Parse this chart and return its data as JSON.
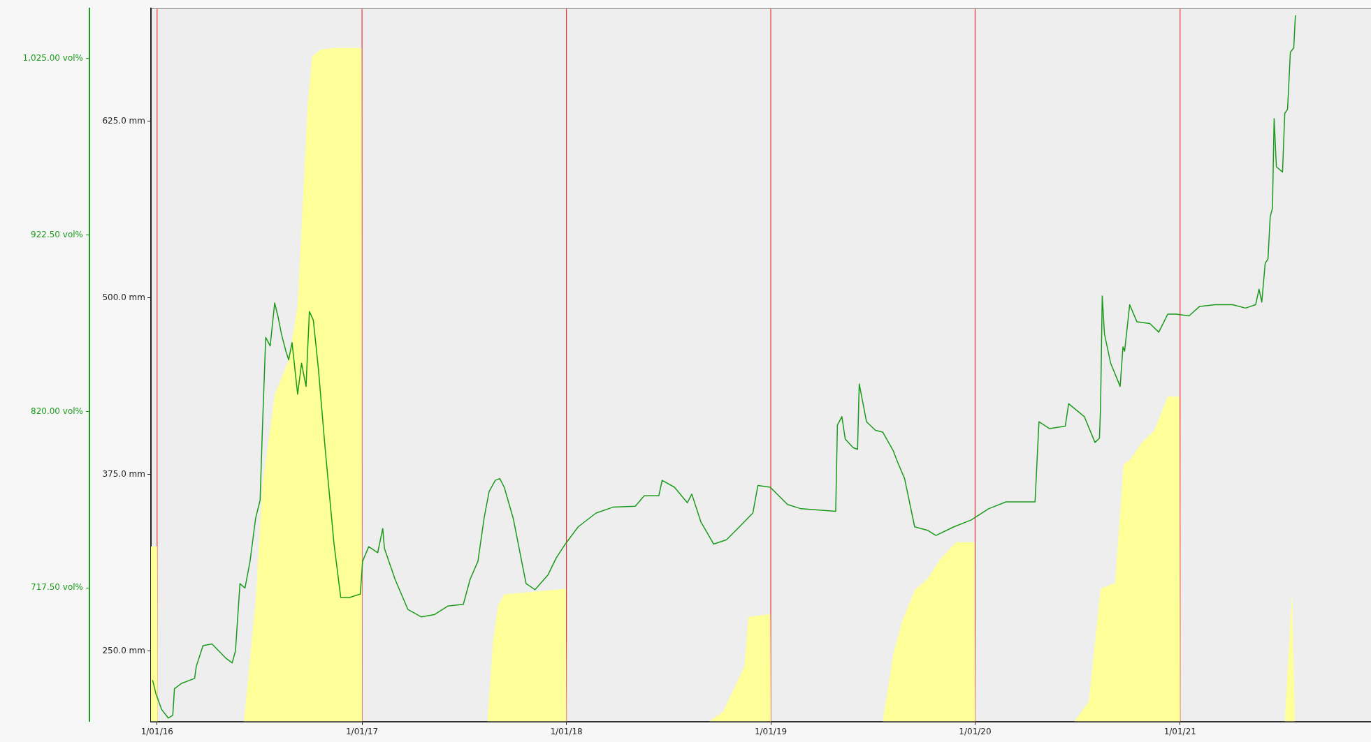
{
  "chart_data": {
    "type": "line",
    "xlim": [
      "2015-12-21",
      "2021-12-08"
    ],
    "xticks": [
      {
        "value": "2016-01-01",
        "label": "1/01/16"
      },
      {
        "value": "2017-01-01",
        "label": "1/01/17"
      },
      {
        "value": "2018-01-01",
        "label": "1/01/18"
      },
      {
        "value": "2019-01-01",
        "label": "1/01/19"
      },
      {
        "value": "2020-01-01",
        "label": "1/01/20"
      },
      {
        "value": "2021-01-01",
        "label": "1/01/21"
      }
    ],
    "ylim": [
      640,
      1054
    ],
    "yticks": [
      {
        "value": 717.5,
        "label": "717.50 vol%"
      },
      {
        "value": 820,
        "label": "820.00 vol%"
      },
      {
        "value": 922.5,
        "label": "922.50 vol%"
      },
      {
        "value": 1025,
        "label": "1,025.00 vol%"
      }
    ],
    "y2lim": [
      200,
      705
    ],
    "y2ticks": [
      {
        "value": 250,
        "label": "250.0 mm"
      },
      {
        "value": 375,
        "label": "375.0 mm"
      },
      {
        "value": 500,
        "label": "500.0 mm"
      },
      {
        "value": 625,
        "label": "625.0 mm"
      }
    ],
    "grid": false,
    "legend": false,
    "ref_lines": [
      {
        "axis": "x",
        "value": "2016-01-01",
        "color": "#e03c3c"
      },
      {
        "axis": "x",
        "value": "2017-01-01",
        "color": "#e03c3c"
      },
      {
        "axis": "x",
        "value": "2018-01-01",
        "color": "#e03c3c"
      },
      {
        "axis": "x",
        "value": "2019-01-01",
        "color": "#e03c3c"
      },
      {
        "axis": "x",
        "value": "2020-01-01",
        "color": "#e03c3c"
      },
      {
        "axis": "x",
        "value": "2021-01-01",
        "color": "#e03c3c"
      }
    ],
    "series": [
      {
        "type": "area",
        "axis": "y2",
        "color": "#ffff99",
        "x": [
          "2015-12-21",
          "2016-01-01",
          "2016-01-02",
          "2016-06-04",
          "2016-06-25",
          "2016-07-07",
          "2016-07-29",
          "2016-08-23",
          "2016-09-08",
          "2016-09-15",
          "2016-09-26",
          "2016-10-04",
          "2016-10-20",
          "2016-11-12",
          "2016-12-31",
          "2017-01-01",
          "2017-08-13",
          "2017-08-23",
          "2017-09-01",
          "2017-09-12",
          "2017-12-31",
          "2018-01-01",
          "2018-09-13",
          "2018-10-08",
          "2018-10-27",
          "2018-11-15",
          "2018-11-22",
          "2018-12-31",
          "2019-01-01",
          "2019-07-20",
          "2019-08-08",
          "2019-08-23",
          "2019-09-15",
          "2019-10-08",
          "2019-10-31",
          "2019-11-28",
          "2019-12-31",
          "2020-01-01",
          "2020-06-26",
          "2020-07-22",
          "2020-08-12",
          "2020-09-07",
          "2020-09-22",
          "2020-10-03",
          "2020-10-24",
          "2020-11-16",
          "2020-12-02",
          "2020-12-10",
          "2020-12-31",
          "2021-01-01",
          "2021-07-07",
          "2021-07-20",
          "2021-07-25"
        ],
        "values": [
          324,
          324,
          200,
          200,
          285,
          366,
          431,
          456,
          494,
          550,
          637,
          671,
          676,
          677,
          677,
          200,
          200,
          257,
          282,
          290,
          294,
          200,
          200,
          207,
          223,
          239,
          274,
          276,
          200,
          200,
          248,
          270,
          293,
          301,
          315,
          327,
          327,
          200,
          200,
          214,
          294,
          298,
          382,
          385,
          397,
          406,
          422,
          430,
          430,
          200,
          200,
          291,
          200
        ]
      },
      {
        "type": "line",
        "color": "#1a9a1a",
        "x": [
          "2015-12-24",
          "2015-12-30",
          "2016-01-09",
          "2016-01-21",
          "2016-01-29",
          "2016-02-01",
          "2016-02-13",
          "2016-03-08",
          "2016-03-11",
          "2016-03-23",
          "2016-04-08",
          "2016-05-02",
          "2016-05-14",
          "2016-05-20",
          "2016-05-28",
          "2016-06-06",
          "2016-06-15",
          "2016-06-25",
          "2016-07-03",
          "2016-07-07",
          "2016-07-13",
          "2016-07-21",
          "2016-07-29",
          "2016-08-04",
          "2016-08-10",
          "2016-08-18",
          "2016-08-23",
          "2016-08-29",
          "2016-09-08",
          "2016-09-15",
          "2016-09-23",
          "2016-09-29",
          "2016-10-06",
          "2016-10-15",
          "2016-10-27",
          "2016-11-12",
          "2016-11-24",
          "2016-12-10",
          "2016-12-29",
          "2017-01-02",
          "2017-01-13",
          "2017-01-29",
          "2017-02-07",
          "2017-02-10",
          "2017-03-01",
          "2017-03-24",
          "2017-04-17",
          "2017-05-10",
          "2017-06-03",
          "2017-07-01",
          "2017-07-13",
          "2017-07-27",
          "2017-08-07",
          "2017-08-16",
          "2017-08-27",
          "2017-09-04",
          "2017-09-12",
          "2017-09-28",
          "2017-10-21",
          "2017-11-06",
          "2017-11-29",
          "2017-12-14",
          "2017-12-30",
          "2018-01-22",
          "2018-02-23",
          "2018-03-26",
          "2018-05-04",
          "2018-05-20",
          "2018-06-15",
          "2018-06-21",
          "2018-07-13",
          "2018-08-05",
          "2018-08-13",
          "2018-08-29",
          "2018-09-21",
          "2018-10-14",
          "2018-11-06",
          "2018-11-30",
          "2018-12-09",
          "2018-12-31",
          "2019-01-31",
          "2019-02-24",
          "2019-04-27",
          "2019-04-30",
          "2019-05-08",
          "2019-05-14",
          "2019-05-28",
          "2019-06-05",
          "2019-06-08",
          "2019-06-21",
          "2019-07-07",
          "2019-07-20",
          "2019-08-08",
          "2019-08-15",
          "2019-08-28",
          "2019-09-15",
          "2019-10-08",
          "2019-10-23",
          "2019-11-24",
          "2019-12-25",
          "2020-01-25",
          "2020-02-25",
          "2020-04-17",
          "2020-04-24",
          "2020-05-13",
          "2020-06-10",
          "2020-06-16",
          "2020-07-14",
          "2020-08-02",
          "2020-08-10",
          "2020-08-12",
          "2020-08-15",
          "2020-08-19",
          "2020-08-30",
          "2020-09-16",
          "2020-09-21",
          "2020-09-24",
          "2020-10-03",
          "2020-10-16",
          "2020-11-08",
          "2020-11-24",
          "2020-12-10",
          "2020-12-25",
          "2021-01-17",
          "2021-02-05",
          "2021-03-05",
          "2021-04-05",
          "2021-04-28",
          "2021-05-16",
          "2021-05-22",
          "2021-05-27",
          "2021-06-02",
          "2021-06-07",
          "2021-06-11",
          "2021-06-15",
          "2021-06-18",
          "2021-06-22",
          "2021-07-03",
          "2021-07-07",
          "2021-07-12",
          "2021-07-17",
          "2021-07-23",
          "2021-07-26"
        ],
        "values": [
          664,
          656,
          647,
          642,
          643.5,
          659,
          662,
          665,
          672,
          684,
          685,
          677,
          674,
          681,
          720,
          717.5,
          733,
          758,
          768.5,
          809,
          863,
          858,
          883,
          875,
          865,
          855,
          850,
          860,
          830,
          848,
          834.5,
          878,
          873,
          845,
          799,
          743,
          712,
          712,
          714,
          733,
          741.5,
          738,
          752,
          740.5,
          722.5,
          705,
          700.7,
          702,
          707,
          708,
          722.5,
          733,
          758,
          773.5,
          780,
          781,
          776,
          758,
          720,
          716.5,
          725,
          735,
          743,
          753,
          761,
          764.5,
          765,
          771,
          771,
          780,
          776,
          767,
          772,
          756,
          743,
          745.5,
          753,
          761,
          777,
          776,
          766,
          763.5,
          762,
          812,
          817,
          804,
          799,
          798,
          836,
          814,
          809,
          808,
          797,
          791,
          781,
          753,
          751,
          748,
          753,
          757,
          763.5,
          767.5,
          767.5,
          814,
          810,
          811.5,
          824.5,
          817,
          802,
          804.5,
          822,
          887,
          865,
          848,
          834.5,
          857.5,
          855,
          882,
          872,
          871,
          866,
          876.5,
          876.5,
          875.5,
          881,
          882,
          882,
          880,
          882,
          891,
          883.5,
          906,
          908.5,
          933,
          938,
          990,
          962,
          959,
          993,
          995.5,
          1028.6,
          1031,
          1050
        ]
      }
    ]
  }
}
